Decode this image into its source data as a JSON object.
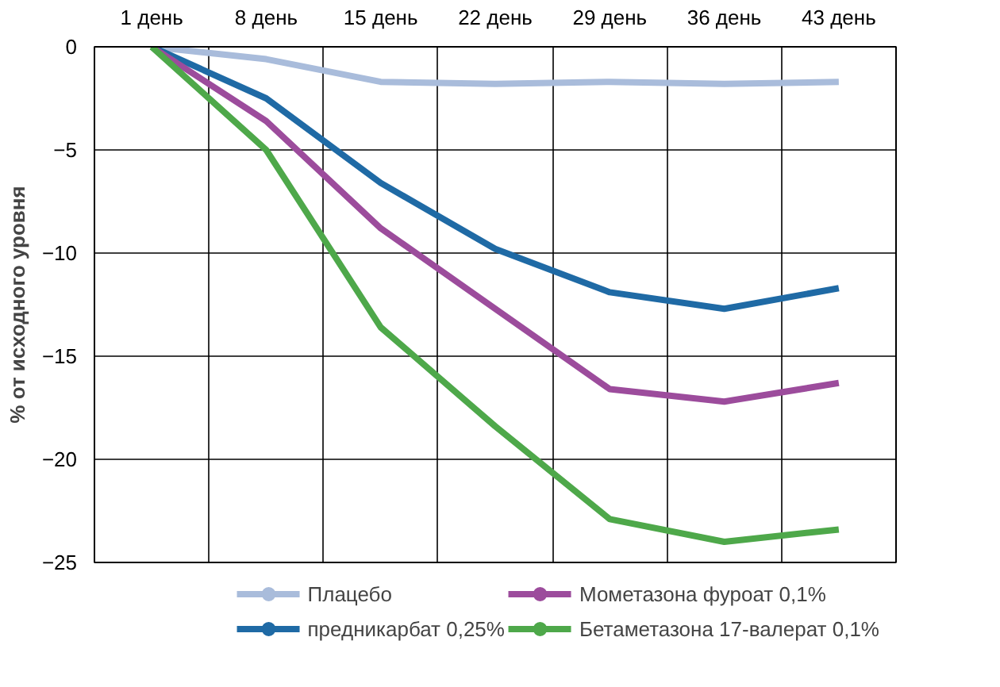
{
  "chart_data": {
    "type": "line",
    "ylabel": "% от исходного уровня",
    "categories": [
      "1 день",
      "8 день",
      "15 день",
      "22 день",
      "29 день",
      "36 день",
      "43 день"
    ],
    "ylim": [
      -25,
      0
    ],
    "yticks": [
      -25,
      -20,
      -15,
      -10,
      -5,
      0
    ],
    "grid": true,
    "legend": "bottom",
    "marker": "none",
    "line_style": "solid",
    "series": [
      {
        "name": "Плацебо",
        "color": "#a9bcdb",
        "values": [
          0,
          -0.6,
          -1.7,
          -1.8,
          -1.7,
          -1.8,
          -1.7
        ]
      },
      {
        "name": "предникарбат 0,25%",
        "color": "#1f6aa5",
        "values": [
          0,
          -2.5,
          -6.6,
          -9.8,
          -11.9,
          -12.7,
          -11.7
        ]
      },
      {
        "name": "Мометазона фуроат 0,1%",
        "color": "#9c4c9c",
        "values": [
          0,
          -3.6,
          -8.8,
          -12.7,
          -16.6,
          -17.2,
          -16.3
        ]
      },
      {
        "name": "Бетаметазона 17-валерат 0,1%",
        "color": "#4ea84a",
        "values": [
          0,
          -5.0,
          -13.6,
          -18.4,
          -22.9,
          -24.0,
          -23.4
        ]
      }
    ]
  }
}
